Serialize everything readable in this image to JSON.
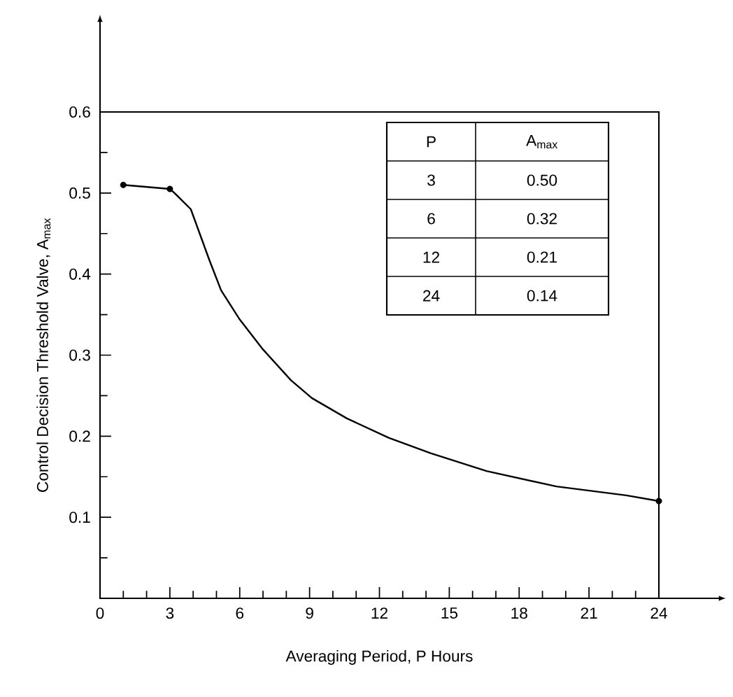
{
  "chart_data": {
    "type": "line",
    "xlabel": "Averaging Period, P Hours",
    "ylabel": "Control Decision Threshold Valve, A$_{max}$",
    "series": [
      {
        "color": "#000000",
        "marker": "none",
        "x": [
          1,
          3,
          3.2,
          3.9,
          4.7,
          5.2,
          6.0,
          7.0,
          8.2,
          9.1,
          10.6,
          12.4,
          14.2,
          16.6,
          19.6,
          22.6,
          24
        ],
        "values": [
          0.51,
          0.505,
          0.5,
          0.48,
          0.417,
          0.38,
          0.344,
          0.307,
          0.269,
          0.247,
          0.222,
          0.198,
          0.179,
          0.157,
          0.138,
          0.127,
          0.12
        ]
      },
      {
        "type": "scatter",
        "color": "#000000",
        "marker": "circle",
        "x": [
          1,
          3,
          24
        ],
        "values": [
          0.51,
          0.505,
          0.12
        ]
      }
    ],
    "xlim": [
      0,
      24
    ],
    "ylim": [
      0,
      0.6
    ],
    "xticks": [
      0,
      3,
      6,
      9,
      12,
      15,
      18,
      21,
      24
    ],
    "yticks": [
      {
        "value": 0,
        "label": null
      },
      0.1,
      0.2,
      0.3,
      0.4,
      0.5,
      0.6
    ],
    "grid": false,
    "annotations": [
      "P",
      "A$_{max}$",
      "3",
      "0.50",
      "6",
      "0.32",
      "12",
      "0.21",
      "24",
      "0.14"
    ]
  }
}
